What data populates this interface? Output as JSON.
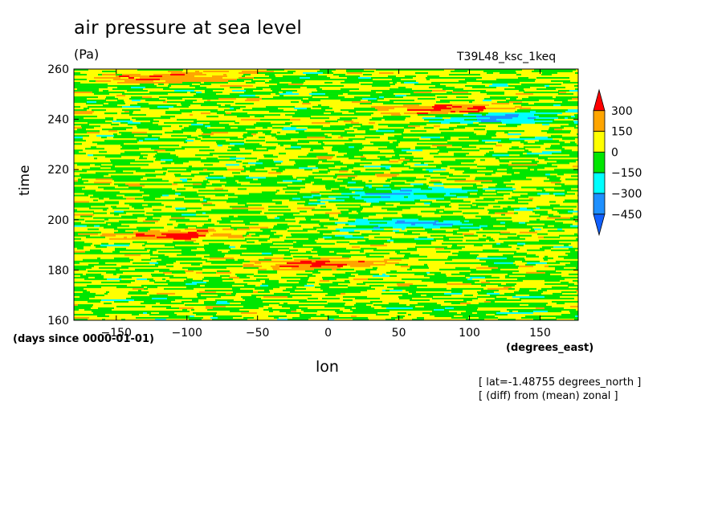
{
  "chart_data": {
    "type": "heatmap",
    "title": "air pressure at sea level",
    "units": "(Pa)",
    "run_name": "T39L48_ksc_1keq",
    "xlabel": "lon",
    "ylabel": "time",
    "x_units": "(degrees_east)",
    "y_units": "(days since 0000-01-01)",
    "annotations": [
      "[ lat=-1.48755 degrees_north ]",
      "[ (diff) from (mean) zonal ]"
    ],
    "xlim": [
      -180,
      177
    ],
    "ylim": [
      160,
      260
    ],
    "x_ticks": [
      -150,
      -100,
      -50,
      0,
      50,
      100,
      150
    ],
    "y_ticks": [
      160,
      180,
      200,
      220,
      240,
      260
    ],
    "colorbar": {
      "labels": [
        "300",
        "150",
        "0",
        "−150",
        "−300",
        "−450"
      ],
      "levels": [
        300,
        150,
        0,
        -150,
        -300,
        -450
      ],
      "colors": [
        "#ff0000",
        "#ffa500",
        "#ffff00",
        "#00e600",
        "#00ffff",
        "#1e90ff",
        "#1060ff"
      ],
      "extend": "both"
    },
    "pattern": "noisy zonal stripes with eastward-propagating anomalies; values mostly between -150 and 150 Pa",
    "features": [
      {
        "type": "positive",
        "lon": -110,
        "day": 257
      },
      {
        "type": "positive",
        "lon": 85,
        "day": 244
      },
      {
        "type": "positive",
        "lon": -10,
        "day": 182
      },
      {
        "type": "positive",
        "lon": -110,
        "day": 194
      },
      {
        "type": "negative",
        "lon": 130,
        "day": 241
      },
      {
        "type": "negative",
        "lon": 50,
        "day": 210
      },
      {
        "type": "negative",
        "lon": 60,
        "day": 198
      }
    ]
  }
}
